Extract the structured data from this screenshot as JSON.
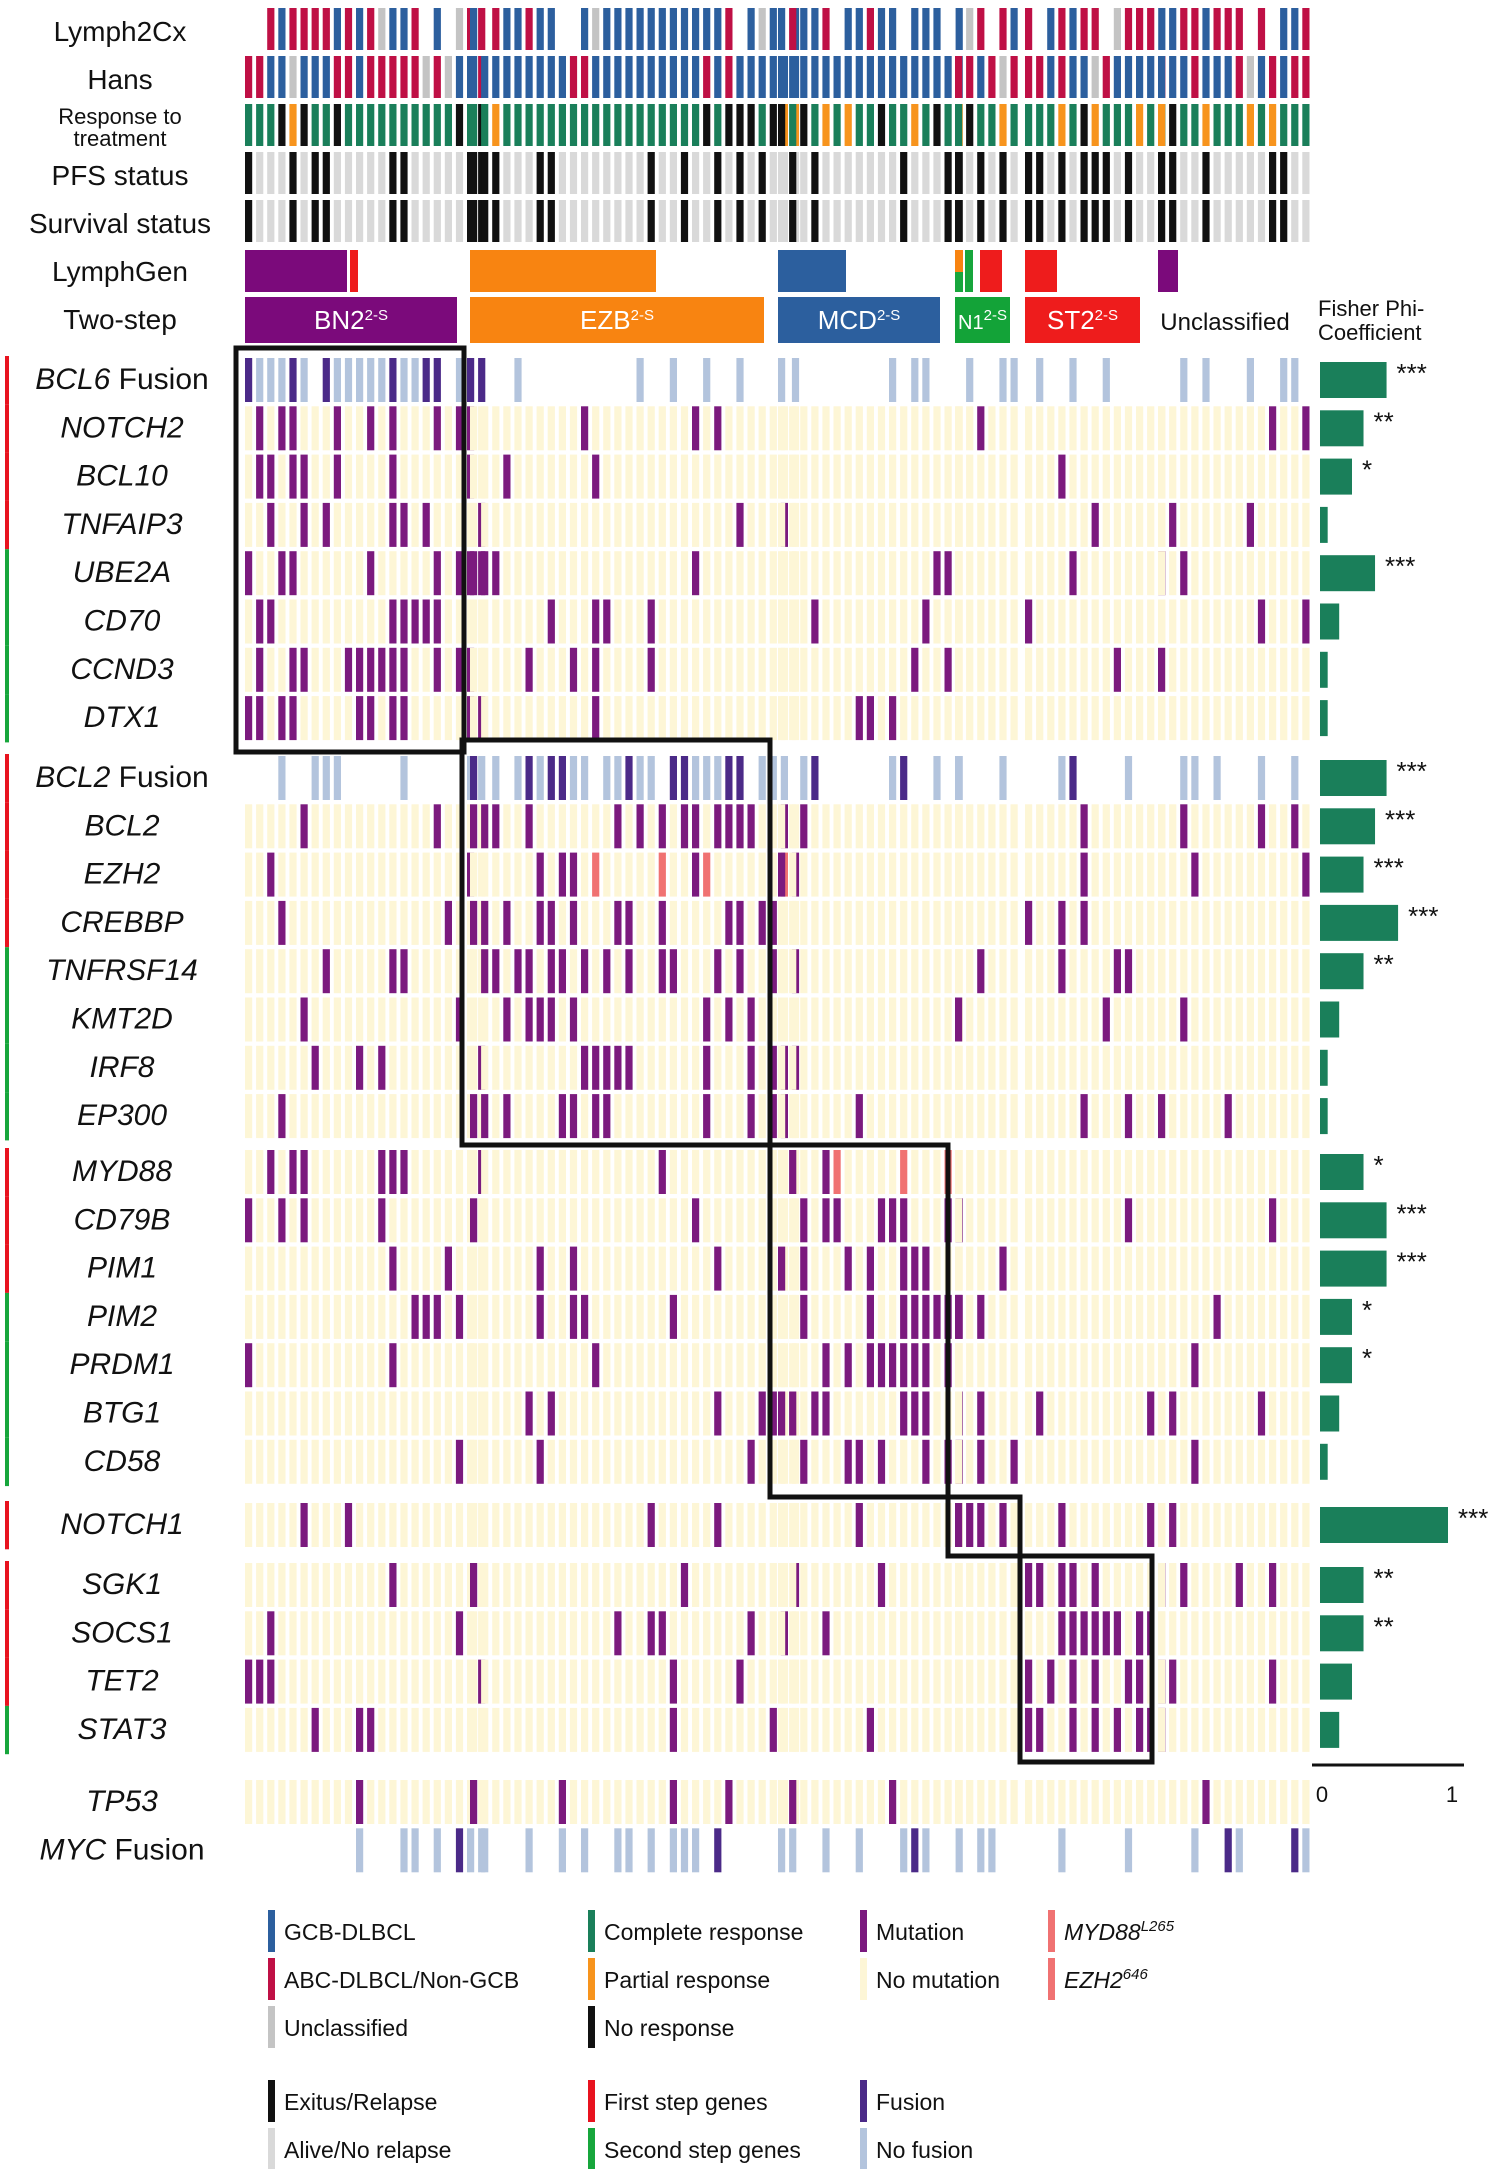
{
  "chart_data": {
    "type": "heatmap",
    "title": "",
    "groups": [
      {
        "name": "BN2",
        "sup": "2-S",
        "n": 22,
        "color": "#7b0a7b"
      },
      {
        "name": "EZB",
        "sup": "2-S",
        "n": 30,
        "color": "#f88411"
      },
      {
        "name": "MCD",
        "sup": "2-S",
        "n": 17,
        "color": "#2c5f9e"
      },
      {
        "name": "N1",
        "sup": "2-S",
        "n": 6,
        "color": "#13a338"
      },
      {
        "name": "ST2",
        "sup": "2-S",
        "n": 13,
        "color": "#ee1c1c"
      },
      {
        "name": "Unclassified",
        "sup": "",
        "n": 14,
        "color": "#ffffff"
      }
    ],
    "annotation_rows": [
      {
        "label": "Lymph2Cx",
        "kind": "coo"
      },
      {
        "label": "Hans",
        "kind": "coo"
      },
      {
        "label": "Response to treatment",
        "kind": "response"
      },
      {
        "label": "PFS status",
        "kind": "status"
      },
      {
        "label": "Survival status",
        "kind": "status"
      },
      {
        "label": "LymphGen",
        "kind": "lymphgen"
      },
      {
        "label": "Two-step",
        "kind": "twostep"
      }
    ],
    "gene_blocks": [
      {
        "genes": [
          "BCL6 Fusion",
          "NOTCH2",
          "BCL10",
          "TNFAIP3",
          "UBE2A",
          "CD70",
          "CCND3",
          "DTX1"
        ],
        "first_step_count": 4
      },
      {
        "genes": [
          "BCL2 Fusion",
          "BCL2",
          "EZH2",
          "CREBBP",
          "TNFRSF14",
          "KMT2D",
          "IRF8",
          "EP300"
        ],
        "first_step_count": 4
      },
      {
        "genes": [
          "MYD88",
          "CD79B",
          "PIM1",
          "PIM2",
          "PRDM1",
          "BTG1",
          "CD58"
        ],
        "first_step_count": 3
      },
      {
        "genes": [
          "NOTCH1"
        ],
        "first_step_count": 1
      },
      {
        "genes": [
          "SGK1",
          "SOCS1",
          "TET2",
          "STAT3"
        ],
        "first_step_count": 3
      },
      {
        "genes": [
          "TP53",
          "MYC Fusion"
        ],
        "first_step_count": 0
      }
    ],
    "fisher_phi": {
      "title": "Fisher Phi-Coefficient",
      "xlim": [
        0,
        1
      ],
      "ticks": [
        "0",
        "1"
      ],
      "values": [
        {
          "gene": "BCL6 Fusion",
          "value": 0.52,
          "sig": "***"
        },
        {
          "gene": "NOTCH2",
          "value": 0.34,
          "sig": "**"
        },
        {
          "gene": "BCL10",
          "value": 0.25,
          "sig": "*"
        },
        {
          "gene": "TNFAIP3",
          "value": 0.06,
          "sig": ""
        },
        {
          "gene": "UBE2A",
          "value": 0.43,
          "sig": "***"
        },
        {
          "gene": "CD70",
          "value": 0.15,
          "sig": ""
        },
        {
          "gene": "CCND3",
          "value": 0.06,
          "sig": ""
        },
        {
          "gene": "DTX1",
          "value": 0.06,
          "sig": ""
        },
        {
          "gene": "BCL2 Fusion",
          "value": 0.52,
          "sig": "***"
        },
        {
          "gene": "BCL2",
          "value": 0.43,
          "sig": "***"
        },
        {
          "gene": "EZH2",
          "value": 0.34,
          "sig": "***"
        },
        {
          "gene": "CREBBP",
          "value": 0.61,
          "sig": "***"
        },
        {
          "gene": "TNFRSF14",
          "value": 0.34,
          "sig": "**"
        },
        {
          "gene": "KMT2D",
          "value": 0.15,
          "sig": ""
        },
        {
          "gene": "IRF8",
          "value": 0.06,
          "sig": ""
        },
        {
          "gene": "EP300",
          "value": 0.06,
          "sig": ""
        },
        {
          "gene": "MYD88",
          "value": 0.34,
          "sig": "*"
        },
        {
          "gene": "CD79B",
          "value": 0.52,
          "sig": "***"
        },
        {
          "gene": "PIM1",
          "value": 0.52,
          "sig": "***"
        },
        {
          "gene": "PIM2",
          "value": 0.25,
          "sig": "*"
        },
        {
          "gene": "PRDM1",
          "value": 0.25,
          "sig": "*"
        },
        {
          "gene": "BTG1",
          "value": 0.15,
          "sig": ""
        },
        {
          "gene": "CD58",
          "value": 0.06,
          "sig": ""
        },
        {
          "gene": "NOTCH1",
          "value": 1.0,
          "sig": "***"
        },
        {
          "gene": "SGK1",
          "value": 0.34,
          "sig": "**"
        },
        {
          "gene": "SOCS1",
          "value": 0.34,
          "sig": "**"
        },
        {
          "gene": "TET2",
          "value": 0.25,
          "sig": ""
        },
        {
          "gene": "STAT3",
          "value": 0.15,
          "sig": ""
        }
      ]
    },
    "legend": [
      {
        "label": "GCB-DLBCL",
        "color": "#2c5f9e"
      },
      {
        "label": "ABC-DLBCL/Non-GCB",
        "color": "#bf1045"
      },
      {
        "label": "Unclassified",
        "color": "#c4c4c4"
      },
      {
        "label": "Complete response",
        "color": "#1a7f5a"
      },
      {
        "label": "Partial response",
        "color": "#f7941d"
      },
      {
        "label": "No response",
        "color": "#111111"
      },
      {
        "label": "Mutation",
        "color": "#7b1a7e"
      },
      {
        "label": "No mutation",
        "color": "#fdf6d6"
      },
      {
        "label": "MYD88",
        "sup": "L265",
        "italic": true,
        "color": "#f07272"
      },
      {
        "label": "EZH2",
        "sup": "646",
        "italic": true,
        "color": "#f07272"
      },
      {
        "label": "Exitus/Relapse",
        "color": "#111111"
      },
      {
        "label": "Alive/No relapse",
        "color": "#d9d9d9"
      },
      {
        "label": "First step genes",
        "color": "#e8131f"
      },
      {
        "label": "Second step genes",
        "color": "#17a63c"
      },
      {
        "label": "Fusion",
        "color": "#4b2a88"
      },
      {
        "label": "No fusion",
        "color": "#b3c4dd"
      }
    ]
  }
}
